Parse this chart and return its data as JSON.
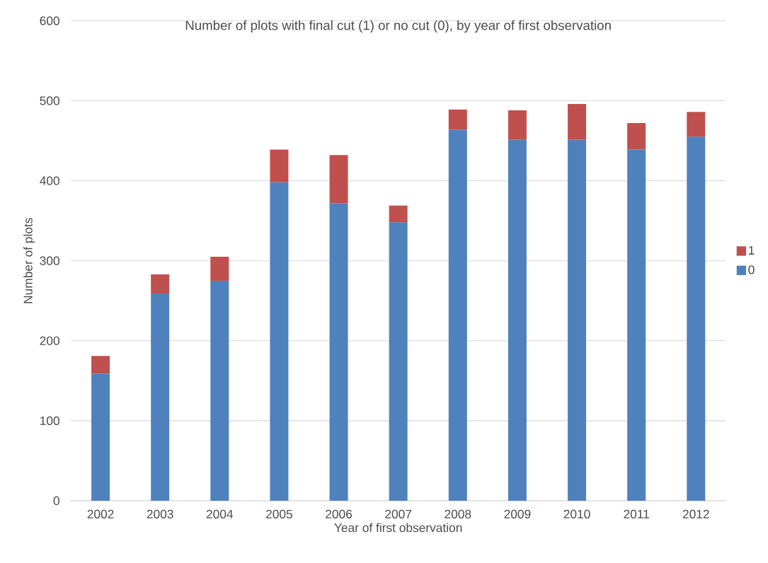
{
  "chart_data": {
    "type": "bar",
    "stacked": true,
    "title": "Number of plots with final cut (1) or no cut (0), by year of first observation",
    "xlabel": "Year of first observation",
    "ylabel": "Number of plots",
    "categories": [
      "2002",
      "2003",
      "2004",
      "2005",
      "2006",
      "2007",
      "2008",
      "2009",
      "2010",
      "2011",
      "2012"
    ],
    "series": [
      {
        "name": "0",
        "color": "#4f81bd",
        "values": [
          159,
          259,
          275,
          398,
          372,
          348,
          464,
          451,
          451,
          439,
          455
        ]
      },
      {
        "name": "1",
        "color": "#c0504d",
        "values": [
          22,
          24,
          30,
          41,
          60,
          21,
          25,
          37,
          45,
          33,
          31
        ]
      }
    ],
    "ylim": [
      0,
      600
    ],
    "yticks": [
      0,
      100,
      200,
      300,
      400,
      500,
      600
    ],
    "grid": "y",
    "legend": "right"
  }
}
